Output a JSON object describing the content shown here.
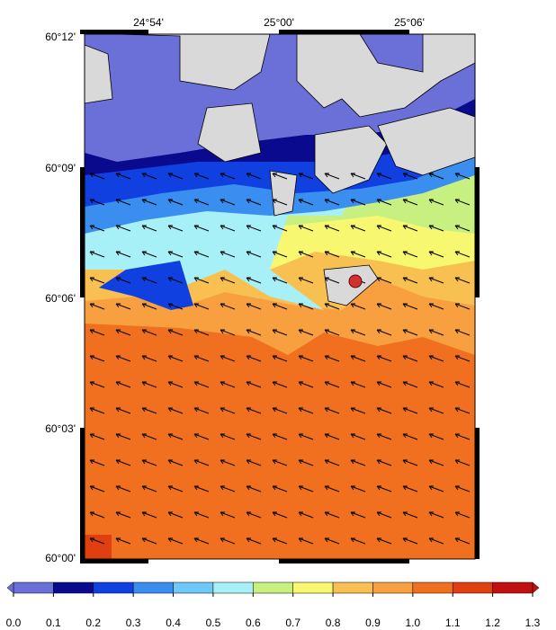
{
  "map": {
    "x_labels": [
      "24°54'",
      "25°00'",
      "25°06'"
    ],
    "y_labels": [
      "60°12'",
      "60°09'",
      "60°06'",
      "60°03'",
      "60°00'"
    ]
  },
  "colorbar": {
    "ticks": [
      {
        "value": 0,
        "label": "0.0"
      },
      {
        "value": 0.1,
        "label": "0.1"
      },
      {
        "value": 0.2,
        "label": "0.2"
      },
      {
        "value": 0.3,
        "label": "0.3"
      },
      {
        "value": 0.4,
        "label": "0.4"
      },
      {
        "value": 0.5,
        "label": "0.5"
      },
      {
        "value": 0.6,
        "label": "0.6"
      },
      {
        "value": 0.7,
        "label": "0.7"
      },
      {
        "value": 0.8,
        "label": "0.8"
      },
      {
        "value": 0.9,
        "label": "0.9"
      },
      {
        "value": 1,
        "label": "1.0"
      },
      {
        "value": 1.1,
        "label": "1.1"
      },
      {
        "value": 1.2,
        "label": "1.2"
      },
      {
        "value": 1.3,
        "label": "1.3"
      }
    ],
    "colors": [
      "#6b6fd8",
      "#0a0a8e",
      "#1040e0",
      "#3a8ef0",
      "#6ec8f8",
      "#a8f0f8",
      "#c8f080",
      "#f8f870",
      "#f8c050",
      "#f8a040",
      "#f07020",
      "#e04010",
      "#c01010"
    ]
  }
}
